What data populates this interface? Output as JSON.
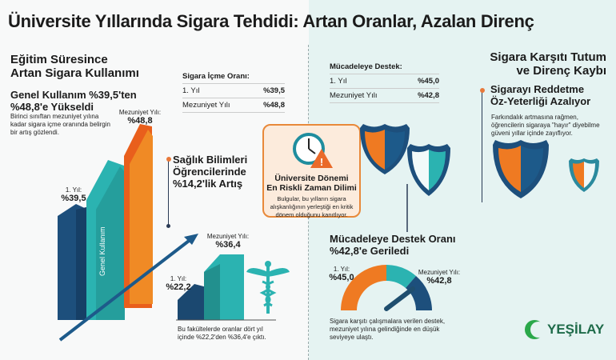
{
  "title": "Üniversite Yıllarında Sigara Tehdidi: Artan Oranlar, Azalan Direnç",
  "left": {
    "heading_line1": "Eğitim Süresince",
    "heading_line2": "Artan Sigara Kullanımı",
    "sub_line1": "Genel Kullanım %39,5'ten",
    "sub_line2": "%48,8'e Yükseldi",
    "desc": "Birinci sınıftan mezuniyet yılına kadar sigara içme oranında belirgin bir artış gözlendi.",
    "table": {
      "title": "Sigara İçme Oranı:",
      "rows": [
        {
          "label": "1. Yıl",
          "value": "%39,5"
        },
        {
          "label": "Mezuniyet Yılı",
          "value": "%48,8"
        }
      ]
    },
    "bars": {
      "first_label": "1. Yıl:",
      "first_value": "%39,5",
      "grad_label": "Mezuniyet Yılı:",
      "grad_value": "%48,8",
      "bar_text": "Genel Kullanım",
      "values": [
        39.5,
        48.8
      ]
    },
    "health": {
      "heading_line1": "Sağlık Bilimleri",
      "heading_line2": "Öğrencilerinde",
      "heading_line3": "%14,2'lik Artış",
      "first_label": "1. Yıl:",
      "first_value": "%22,2",
      "grad_label": "Mezuniyet Yılı:",
      "grad_value": "%36,4",
      "caption": "Bu fakültelerde oranlar dört yıl içinde %22,2'den %36,4'e çıktı.",
      "values": [
        22.2,
        36.4
      ]
    }
  },
  "center": {
    "title_line1": "Üniversite Dönemi",
    "title_line2": "En Riskli Zaman Dilimi",
    "desc": "Bulgular, bu yılların sigara alışkanlığının yerleştiği en kritik dönem olduğunu kanıtlıyor."
  },
  "right": {
    "table": {
      "title": "Mücadeleye Destek:",
      "rows": [
        {
          "label": "1. Yıl",
          "value": "%45,0"
        },
        {
          "label": "Mezuniyet Yılı",
          "value": "%42,8"
        }
      ]
    },
    "heading_line1": "Sigara Karşıtı Tutum",
    "heading_line2": "ve Direnç Kaybı",
    "sub_line1": "Sigarayı Reddetme",
    "sub_line2": "Öz-Yeterliği Azalıyor",
    "desc": "Farkındalık artmasına rağmen, öğrencilerin sigaraya \"hayır\" diyebilme güveni yıllar içinde zayıflıyor.",
    "gauge": {
      "heading_line1": "Mücadeleye Destek Oranı",
      "heading_line2": "%42,8'e Geriledi",
      "first_label": "1. Yıl:",
      "first_value": "%45,0",
      "grad_label": "Mezuniyet Yılı:",
      "grad_value": "%42,8",
      "desc": "Sigara karşıtı çalışmalara verilen destek, mezuniyet yılına gelindiğinde en düşük seviyeye ulaştı.",
      "values": [
        45.0,
        42.8
      ]
    }
  },
  "logo": "YEŞİLAY",
  "colors": {
    "orange": "#ef7a22",
    "teal": "#2bb3b1",
    "navy": "#1d4f7c",
    "green": "#2aa84a"
  }
}
